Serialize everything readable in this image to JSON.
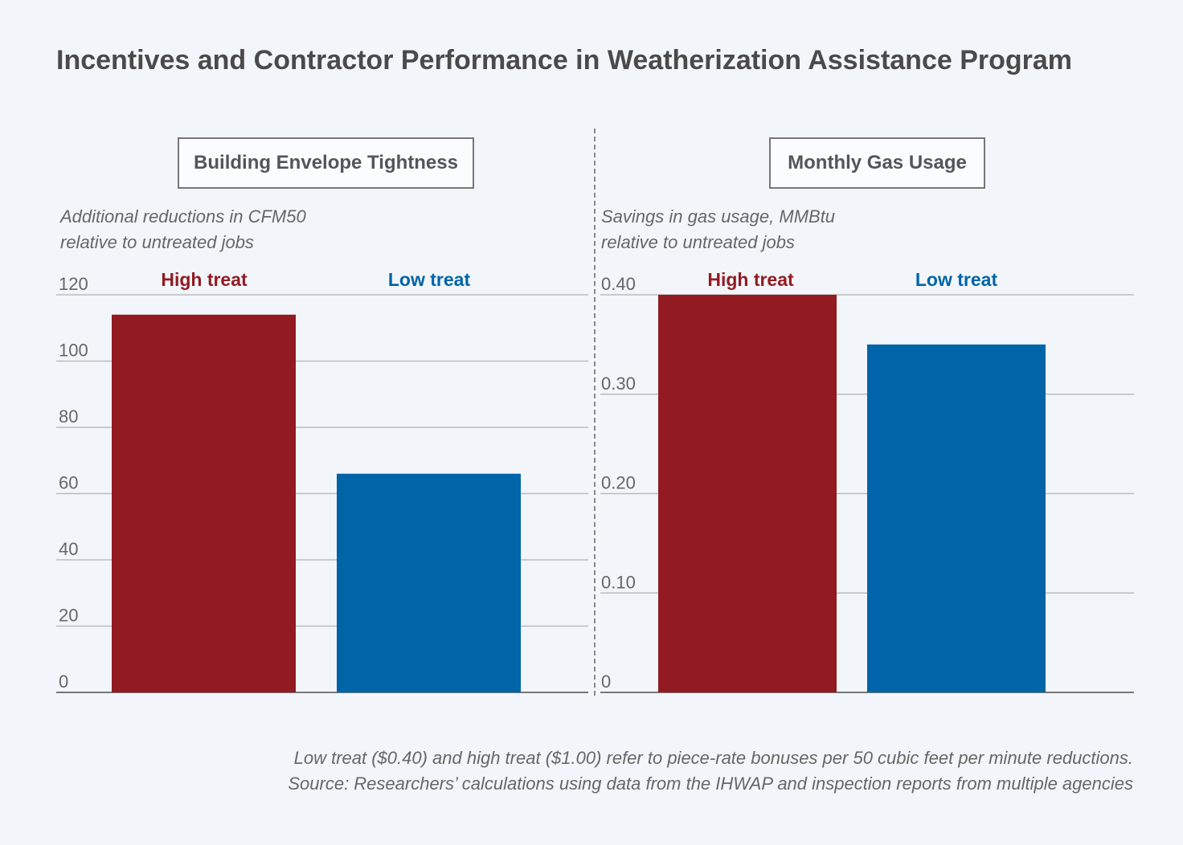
{
  "title": "Incentives and Contractor Performance in Weatherization Assistance Program",
  "colors": {
    "high_treat": "#921b22",
    "low_treat": "#0064a8"
  },
  "chart_data": [
    {
      "type": "bar",
      "title": "Building Envelope Tightness",
      "ylabel_line1": "Additional reductions in CFM50",
      "ylabel_line2": "relative to untreated jobs",
      "categories": [
        "High treat",
        "Low treat"
      ],
      "values": [
        114,
        66
      ],
      "ylim": [
        0,
        120
      ],
      "yticks": [
        0,
        20,
        40,
        60,
        80,
        100,
        120
      ],
      "ytick_labels": [
        "0",
        "20",
        "40",
        "60",
        "80",
        "100",
        "120"
      ],
      "grid": true
    },
    {
      "type": "bar",
      "title": "Monthly Gas Usage",
      "ylabel_line1": "Savings in gas usage, MMBtu",
      "ylabel_line2": "relative to untreated jobs",
      "categories": [
        "High treat",
        "Low treat"
      ],
      "values": [
        0.4,
        0.35
      ],
      "ylim": [
        0,
        0.4
      ],
      "yticks": [
        0,
        0.1,
        0.2,
        0.3,
        0.4
      ],
      "ytick_labels": [
        "0",
        "0.10",
        "0.20",
        "0.30",
        "0.40"
      ],
      "grid": true
    }
  ],
  "footnote": {
    "line1": "Low treat ($0.40) and high treat ($1.00) refer to piece-rate bonuses per 50 cubic feet per minute reductions.",
    "line2": "Source: Researchers’ calculations using data from the IHWAP and inspection reports from multiple agencies"
  }
}
